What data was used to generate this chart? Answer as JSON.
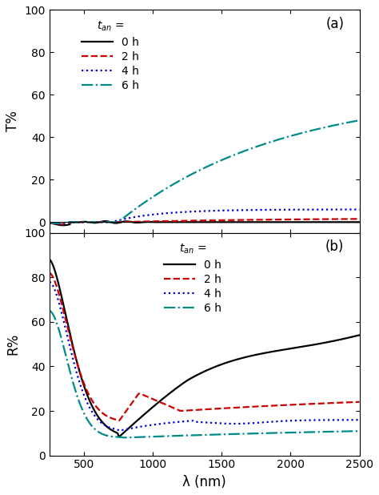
{
  "title_a": "(a)",
  "title_b": "(b)",
  "xlabel": "λ (nm)",
  "ylabel_a": "T%",
  "ylabel_b": "R%",
  "xlim": [
    250,
    2500
  ],
  "ylim_a": [
    -5,
    100
  ],
  "ylim_b": [
    0,
    100
  ],
  "xticks": [
    500,
    1000,
    1500,
    2000,
    2500
  ],
  "yticks_a": [
    0,
    20,
    40,
    60,
    80,
    100
  ],
  "yticks_b": [
    0,
    20,
    40,
    60,
    80,
    100
  ],
  "colors": [
    "#000000",
    "#cc0000",
    "#0000cc",
    "#008B8B"
  ],
  "linestyles": [
    "-",
    "--",
    ":",
    "-."
  ],
  "linewidths": [
    1.5,
    1.5,
    1.5,
    1.5
  ],
  "background": "#ffffff"
}
